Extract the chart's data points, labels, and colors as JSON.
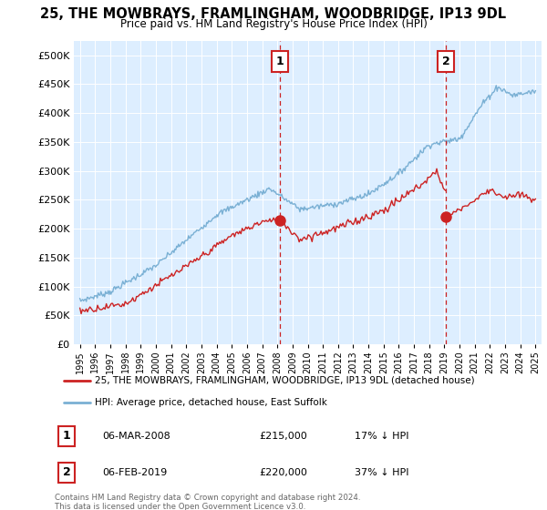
{
  "title": "25, THE MOWBRAYS, FRAMLINGHAM, WOODBRIDGE, IP13 9DL",
  "subtitle": "Price paid vs. HM Land Registry's House Price Index (HPI)",
  "ytick_values": [
    0,
    50000,
    100000,
    150000,
    200000,
    250000,
    300000,
    350000,
    400000,
    450000,
    500000
  ],
  "ylim": [
    0,
    525000
  ],
  "xlim_start": 1994.6,
  "xlim_end": 2025.4,
  "sale1_x": 2008.17,
  "sale1_y": 215000,
  "sale2_x": 2019.09,
  "sale2_y": 220000,
  "vline_color": "#cc2222",
  "hpi_color": "#7ab0d4",
  "price_color": "#cc2222",
  "legend_line1": "25, THE MOWBRAYS, FRAMLINGHAM, WOODBRIDGE, IP13 9DL (detached house)",
  "legend_line2": "HPI: Average price, detached house, East Suffolk",
  "table_row1": [
    "1",
    "06-MAR-2008",
    "£215,000",
    "17% ↓ HPI"
  ],
  "table_row2": [
    "2",
    "06-FEB-2019",
    "£220,000",
    "37% ↓ HPI"
  ],
  "footnote": "Contains HM Land Registry data © Crown copyright and database right 2024.\nThis data is licensed under the Open Government Licence v3.0.",
  "bg_color": "#ffffff",
  "plot_bg_color": "#ddeeff"
}
